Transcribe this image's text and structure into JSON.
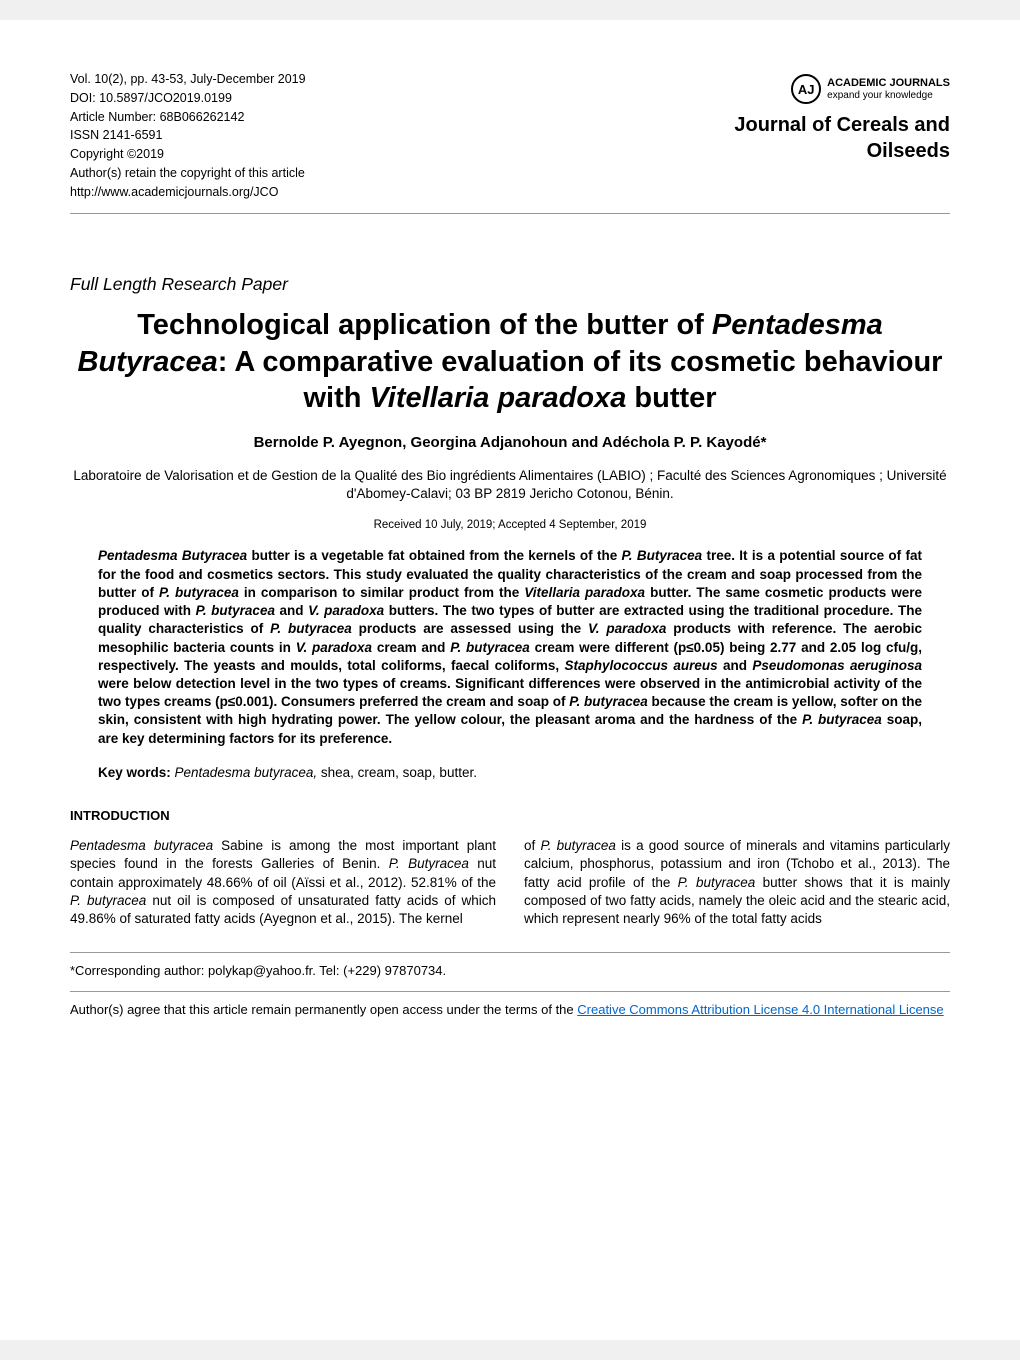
{
  "meta": {
    "vol_line": "Vol. 10(2), pp. 43-53, July-December 2019",
    "doi_line": "DOI: 10.5897/JCO2019.0199",
    "article_num_line": "Article Number: 68B066262142",
    "issn_line": "ISSN 2141-6591",
    "copyright_line": "Copyright ©2019",
    "retain_line": "Author(s) retain the copyright of this article",
    "url_line": "http://www.academicjournals.org/JCO"
  },
  "logo": {
    "aj": "AJ",
    "brand_bold": "ACADEMIC JOURNALS",
    "brand_tag": "expand your knowledge"
  },
  "journal_name_line1": "Journal of Cereals and",
  "journal_name_line2": "Oilseeds",
  "paper_type": "Full Length Research Paper",
  "title_parts": {
    "t1": "Technological application of the butter of ",
    "t2_italic": "Pentadesma Butyracea",
    "t3": ": A comparative evaluation of its cosmetic behaviour with ",
    "t4_italic": "Vitellaria paradoxa",
    "t5": " butter"
  },
  "authors": "Bernolde P. Ayegnon, Georgina Adjanohoun  and Adéchola P. P. Kayodé*",
  "affiliation": "Laboratoire de Valorisation et de Gestion de la Qualité des Bio ingrédients Alimentaires (LABIO) ; Faculté des  Sciences Agronomiques ; Université d'Abomey-Calavi; 03 BP 2819 Jericho  Cotonou, Bénin.",
  "dates": "Received 10 July, 2019; Accepted 4 September, 2019",
  "abstract_parts": {
    "a1_italic": "Pentadesma Butyracea",
    "a2": " butter is a vegetable fat obtained from the kernels of the ",
    "a3_italic": "P. Butyracea",
    "a4": " tree. It is a potential source of fat for the food and cosmetics sectors. This study evaluated the quality characteristics of the cream and soap processed from the butter of ",
    "a5_italic": "P. butyracea",
    "a6": " in comparison to similar product from the ",
    "a7_italic": "Vitellaria paradoxa",
    "a8": " butter. The same cosmetic products were produced with ",
    "a9_italic": "P. butyracea",
    "a10": " and ",
    "a11_italic": "V. paradoxa",
    "a12": " butters. The two types of butter are extracted using the traditional procedure. The quality characteristics of ",
    "a13_italic": "P. butyracea",
    "a14": " products are assessed using the ",
    "a15_italic": "V. paradoxa",
    "a16": " products with reference. The aerobic mesophilic bacteria counts in ",
    "a17_italic": "V. paradoxa",
    "a18": " cream and ",
    "a19_italic": "P. butyracea",
    "a20": " cream were different (p≤0.05) being 2.77 and 2.05 log cfu/g, respectively. The yeasts and moulds, total coliforms, faecal coliforms, ",
    "a21_italic": "Staphylococcus aureus",
    "a22": " and ",
    "a23_italic": "Pseudomonas aeruginosa",
    "a24": " were below detection level in the two types of creams. Significant differences were observed in the antimicrobial activity of the two types creams (p≤0.001). Consumers preferred the cream and soap of ",
    "a25_italic": "P. butyracea",
    "a26": " because the cream is yellow, softer on the skin, consistent with high hydrating power. The yellow colour, the pleasant aroma and the hardness of the ",
    "a27_italic": "P. butyracea",
    "a28": " soap, are key determining factors for its preference."
  },
  "keywords": {
    "label": "Key words: ",
    "k1_italic": "Pentadesma butyracea,",
    "k2": " shea, cream, soap, butter."
  },
  "intro_heading": "INTRODUCTION",
  "intro_col1": {
    "p1_italic": "Pentadesma butyracea",
    "p2": " Sabine is among the most important plant species found in the forests Galleries of Benin. ",
    "p3_italic": "P. Butyracea",
    "p4": " nut contain approximately 48.66% of oil (Aïssi et al., 2012). 52.81% of the ",
    "p5_italic": "P. butyracea",
    "p6": " nut oil is composed of unsaturated fatty acids of which 49.86% of saturated fatty acids (Ayegnon et al., 2015). The kernel"
  },
  "intro_col2": {
    "q1": "of ",
    "q2_italic": "P. butyracea",
    "q3": " is a good source of minerals and vitamins particularly calcium, phosphorus, potassium and iron (Tchobo et al., 2013). The fatty acid profile of the ",
    "q4_italic": "P. butyracea",
    "q5": " butter shows that it is mainly composed of two fatty acids, namely the oleic acid and the stearic acid, which represent nearly 96% of the total fatty acids"
  },
  "footer": {
    "corresponding": "*Corresponding author: polykap@yahoo.fr. Tel: (+229) 97870734.",
    "license_pre": "Author(s) agree that this article remain permanently open access under the terms of the ",
    "license_link": "Creative Commons Attribution License 4.0 International License"
  }
}
